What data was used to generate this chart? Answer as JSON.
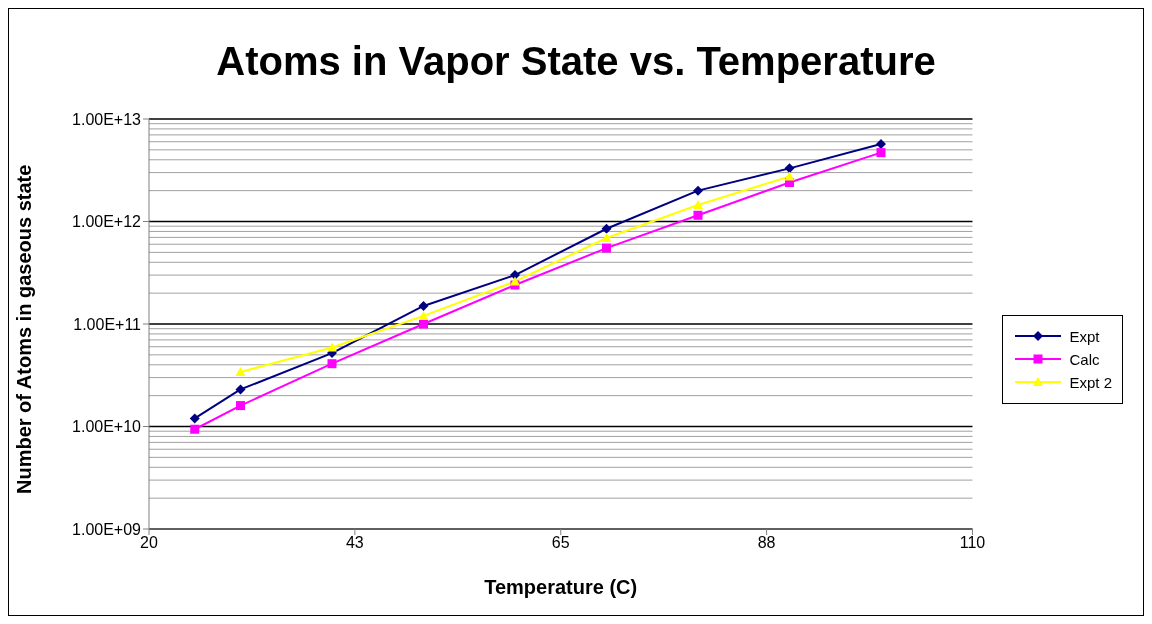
{
  "chart_data": {
    "type": "line",
    "title": "Atoms in Vapor State vs. Temperature",
    "xlabel": "Temperature (C)",
    "ylabel": "Number of Atoms in gaseous state",
    "x": [
      25,
      30,
      40,
      50,
      60,
      70,
      80,
      90,
      100
    ],
    "series": [
      {
        "name": "Expt",
        "color": "#000080",
        "marker": "diamond",
        "values": [
          12000000000.0,
          23000000000.0,
          52000000000.0,
          150000000000.0,
          300000000000.0,
          850000000000.0,
          2000000000000.0,
          3300000000000.0,
          5700000000000.0
        ]
      },
      {
        "name": "Calc",
        "color": "#ff00ff",
        "marker": "square",
        "values": [
          9400000000.0,
          16000000000.0,
          41000000000.0,
          100000000000.0,
          240000000000.0,
          550000000000.0,
          1150000000000.0,
          2400000000000.0,
          4700000000000.0
        ]
      },
      {
        "name": "Expt 2",
        "color": "#ffff00",
        "marker": "triangle",
        "values": [
          null,
          34000000000.0,
          59000000000.0,
          120000000000.0,
          260000000000.0,
          690000000000.0,
          1450000000000.0,
          2750000000000.0,
          null
        ]
      }
    ],
    "xlim": [
      20,
      110
    ],
    "xticks": [
      20,
      {
        "value": 42.5,
        "label": "43"
      },
      65,
      {
        "value": 87.5,
        "label": "88"
      },
      110
    ],
    "ylim": [
      1000000000.0,
      10000000000000.0
    ],
    "yticks": [
      {
        "value": 1000000000.0,
        "label": "1.00E+09"
      },
      {
        "value": 10000000000.0,
        "label": "1.00E+10"
      },
      {
        "value": 100000000000.0,
        "label": "1.00E+11"
      },
      {
        "value": 1000000000000.0,
        "label": "1.00E+12"
      },
      {
        "value": 10000000000000.0,
        "label": "1.00E+13"
      }
    ],
    "log": "y",
    "grid": "y",
    "legend": "right"
  }
}
